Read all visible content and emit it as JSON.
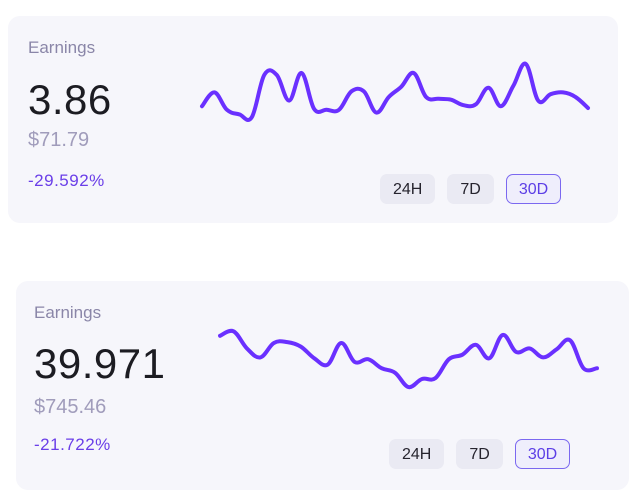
{
  "cards": [
    {
      "label": "Earnings",
      "value": "3.86",
      "fiat": "$71.79",
      "change": "-29.592%",
      "sparkline": [
        52,
        67,
        48,
        43,
        40,
        86,
        86,
        58,
        88,
        49,
        48,
        48,
        68,
        68,
        45,
        62,
        73,
        88,
        62,
        60,
        59,
        53,
        54,
        72,
        52,
        74,
        98,
        58,
        65,
        67,
        62,
        50
      ],
      "ranges": [
        "24H",
        "7D",
        "30D"
      ],
      "active_range": "30D"
    },
    {
      "label": "Earnings",
      "value": "39.971",
      "fiat": "$745.46",
      "change": "-21.722%",
      "sparkline": [
        88,
        93,
        74,
        64,
        80,
        81,
        76,
        63,
        56,
        80,
        59,
        62,
        52,
        47,
        31,
        40,
        41,
        62,
        67,
        78,
        63,
        89,
        70,
        74,
        64,
        73,
        83,
        52,
        52
      ],
      "ranges": [
        "24H",
        "7D",
        "30D"
      ],
      "active_range": "30D"
    }
  ],
  "colors": {
    "card_bg": "#f6f6fb",
    "line": "#6a30ff",
    "change": "#6a3ee8",
    "active_border": "#7b68f0"
  }
}
